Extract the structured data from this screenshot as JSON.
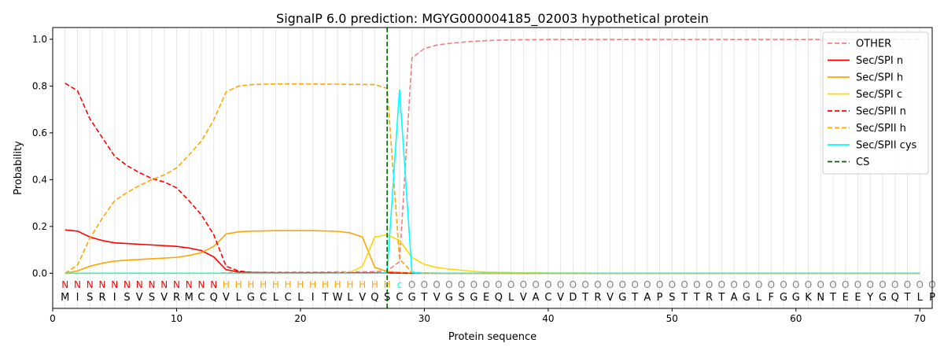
{
  "chart_data": {
    "type": "line",
    "title": "SignalP 6.0 prediction: MGYG000004185_02003 hypothetical protein",
    "xlabel": "Protein sequence",
    "ylabel": "Probability",
    "xlim": [
      0,
      71
    ],
    "ylim": [
      -0.15,
      1.05
    ],
    "xticks": [
      0,
      10,
      20,
      30,
      40,
      50,
      60,
      70
    ],
    "yticks": [
      0.0,
      0.2,
      0.4,
      0.6,
      0.8,
      1.0
    ],
    "x_tick_labels": [
      "0",
      "10",
      "20",
      "30",
      "40",
      "50",
      "60",
      "70"
    ],
    "y_tick_labels": [
      "0.0",
      "0.2",
      "0.4",
      "0.6",
      "0.8",
      "1.0"
    ],
    "grid": "vertical lines at each residue",
    "legend_position": "top-right",
    "sequence": "MISRISVSVRMCQVLGCLCLITWLVQSCGTVGSGEQLVACVDTRVGTAPSTTRTAGLFGGKNTEEYGQTLP",
    "labels": "NNNNNNNNNNNNNHHHHHHHHHHHHHHcOOOOOOOOOOOOOOOOOOOOOOOOOOOOOOOOOOOOOOOOOOO",
    "label_colors": {
      "N": "#ff0000",
      "H": "#ffa500",
      "c": "#00ffff",
      "O": "#808080"
    },
    "cs_position": 27,
    "series": [
      {
        "name": "OTHER",
        "color": "#f08080",
        "dash": true,
        "values": [
          0.0,
          0.0,
          0.0,
          0.0,
          0.0,
          0.0,
          0.0,
          0.0,
          0.0,
          0.0,
          0.0,
          0.0,
          0.0,
          0.002,
          0.003,
          0.004,
          0.004,
          0.005,
          0.005,
          0.005,
          0.005,
          0.005,
          0.006,
          0.006,
          0.006,
          0.007,
          0.01,
          0.05,
          0.92,
          0.96,
          0.975,
          0.982,
          0.987,
          0.991,
          0.994,
          0.996,
          0.997,
          0.998,
          0.998,
          0.999,
          0.999,
          0.999,
          0.999,
          0.999,
          0.999,
          0.999,
          0.999,
          0.999,
          0.999,
          0.999,
          0.999,
          0.999,
          0.999,
          0.999,
          0.999,
          0.999,
          0.999,
          0.999,
          0.999,
          0.999,
          0.999,
          0.999,
          0.999,
          0.999,
          0.999,
          0.999,
          0.999,
          0.999,
          0.999,
          0.999
        ]
      },
      {
        "name": "Sec/SPI n",
        "color": "#ff0000",
        "dash": false,
        "values": [
          0.185,
          0.18,
          0.155,
          0.14,
          0.13,
          0.127,
          0.124,
          0.121,
          0.118,
          0.115,
          0.108,
          0.097,
          0.07,
          0.015,
          0.006,
          0.003,
          0.002,
          0.002,
          0.002,
          0.002,
          0.002,
          0.002,
          0.002,
          0.002,
          0.002,
          0.002,
          0.002,
          0.001,
          0.0,
          0.0,
          0.0,
          0.0,
          0.0,
          0.0,
          0.0,
          0.0,
          0.0,
          0.0,
          0.0,
          0.0,
          0.0,
          0.0,
          0.0,
          0.0,
          0.0,
          0.0,
          0.0,
          0.0,
          0.0,
          0.0,
          0.0,
          0.0,
          0.0,
          0.0,
          0.0,
          0.0,
          0.0,
          0.0,
          0.0,
          0.0,
          0.0,
          0.0,
          0.0,
          0.0,
          0.0,
          0.0,
          0.0,
          0.0,
          0.0,
          0.0
        ]
      },
      {
        "name": "Sec/SPI h",
        "color": "#ffa500",
        "dash": false,
        "values": [
          0.0,
          0.01,
          0.03,
          0.043,
          0.052,
          0.056,
          0.059,
          0.062,
          0.065,
          0.068,
          0.076,
          0.088,
          0.115,
          0.168,
          0.177,
          0.18,
          0.181,
          0.182,
          0.182,
          0.182,
          0.182,
          0.181,
          0.179,
          0.173,
          0.155,
          0.025,
          0.008,
          0.004,
          0.002,
          0.001,
          0.0,
          0.0,
          0.0,
          0.0,
          0.0,
          0.0,
          0.0,
          0.0,
          0.0,
          0.0,
          0.0,
          0.0,
          0.0,
          0.0,
          0.0,
          0.0,
          0.0,
          0.0,
          0.0,
          0.0,
          0.0,
          0.0,
          0.0,
          0.0,
          0.0,
          0.0,
          0.0,
          0.0,
          0.0,
          0.0,
          0.0,
          0.0,
          0.0,
          0.0,
          0.0,
          0.0,
          0.0,
          0.0,
          0.0,
          0.0
        ]
      },
      {
        "name": "Sec/SPI c",
        "color": "#ffd700",
        "dash": false,
        "values": [
          0.0,
          0.0,
          0.0,
          0.0,
          0.0,
          0.0,
          0.0,
          0.0,
          0.0,
          0.0,
          0.0,
          0.0,
          0.0,
          0.0,
          0.0,
          0.0,
          0.0,
          0.0,
          0.0,
          0.0,
          0.0,
          0.0,
          0.001,
          0.004,
          0.03,
          0.155,
          0.165,
          0.14,
          0.068,
          0.038,
          0.025,
          0.018,
          0.013,
          0.008,
          0.005,
          0.004,
          0.003,
          0.002,
          0.002,
          0.001,
          0.001,
          0.001,
          0.001,
          0.0,
          0.0,
          0.0,
          0.0,
          0.0,
          0.0,
          0.0,
          0.0,
          0.0,
          0.0,
          0.0,
          0.0,
          0.0,
          0.0,
          0.0,
          0.0,
          0.0,
          0.0,
          0.0,
          0.0,
          0.0,
          0.0,
          0.0,
          0.0,
          0.0,
          0.0,
          0.0
        ]
      },
      {
        "name": "Sec/SPII n",
        "color": "#ff0000",
        "dash": true,
        "values": [
          0.812,
          0.78,
          0.66,
          0.58,
          0.5,
          0.46,
          0.43,
          0.405,
          0.39,
          0.365,
          0.31,
          0.25,
          0.165,
          0.03,
          0.01,
          0.004,
          0.003,
          0.002,
          0.002,
          0.002,
          0.002,
          0.002,
          0.002,
          0.002,
          0.002,
          0.002,
          0.002,
          0.001,
          0.0,
          0.0,
          0.0,
          0.0,
          0.0,
          0.0,
          0.0,
          0.0,
          0.0,
          0.0,
          0.0,
          0.0,
          0.0,
          0.0,
          0.0,
          0.0,
          0.0,
          0.0,
          0.0,
          0.0,
          0.0,
          0.0,
          0.0,
          0.0,
          0.0,
          0.0,
          0.0,
          0.0,
          0.0,
          0.0,
          0.0,
          0.0,
          0.0,
          0.0,
          0.0,
          0.0,
          0.0,
          0.0,
          0.0,
          0.0,
          0.0,
          0.0
        ]
      },
      {
        "name": "Sec/SPII h",
        "color": "#ffa500",
        "dash": true,
        "values": [
          0.0,
          0.035,
          0.15,
          0.235,
          0.31,
          0.345,
          0.375,
          0.4,
          0.42,
          0.45,
          0.505,
          0.565,
          0.655,
          0.775,
          0.8,
          0.806,
          0.808,
          0.809,
          0.809,
          0.809,
          0.809,
          0.808,
          0.808,
          0.807,
          0.807,
          0.806,
          0.79,
          0.06,
          0.005,
          0.002,
          0.001,
          0.0,
          0.0,
          0.0,
          0.0,
          0.0,
          0.0,
          0.0,
          0.0,
          0.0,
          0.0,
          0.0,
          0.0,
          0.0,
          0.0,
          0.0,
          0.0,
          0.0,
          0.0,
          0.0,
          0.0,
          0.0,
          0.0,
          0.0,
          0.0,
          0.0,
          0.0,
          0.0,
          0.0,
          0.0,
          0.0,
          0.0,
          0.0,
          0.0,
          0.0,
          0.0,
          0.0,
          0.0,
          0.0,
          0.0
        ]
      },
      {
        "name": "Sec/SPII cys",
        "color": "#00ffff",
        "dash": false,
        "values": [
          0.0,
          0.0,
          0.0,
          0.0,
          0.0,
          0.0,
          0.0,
          0.0,
          0.0,
          0.0,
          0.0,
          0.0,
          0.0,
          0.0,
          0.0,
          0.0,
          0.0,
          0.0,
          0.0,
          0.0,
          0.0,
          0.0,
          0.0,
          0.0,
          0.0,
          0.0,
          0.002,
          0.785,
          0.003,
          0.0,
          0.0,
          0.0,
          0.0,
          0.0,
          0.0,
          0.0,
          0.0,
          0.0,
          0.0,
          0.0,
          0.0,
          0.0,
          0.0,
          0.0,
          0.0,
          0.0,
          0.0,
          0.0,
          0.0,
          0.0,
          0.0,
          0.0,
          0.0,
          0.0,
          0.0,
          0.0,
          0.0,
          0.0,
          0.0,
          0.0,
          0.0,
          0.0,
          0.0,
          0.0,
          0.0,
          0.0,
          0.0,
          0.0,
          0.0,
          0.0
        ]
      }
    ],
    "cs_legend": {
      "name": "CS",
      "color": "#006400"
    }
  }
}
